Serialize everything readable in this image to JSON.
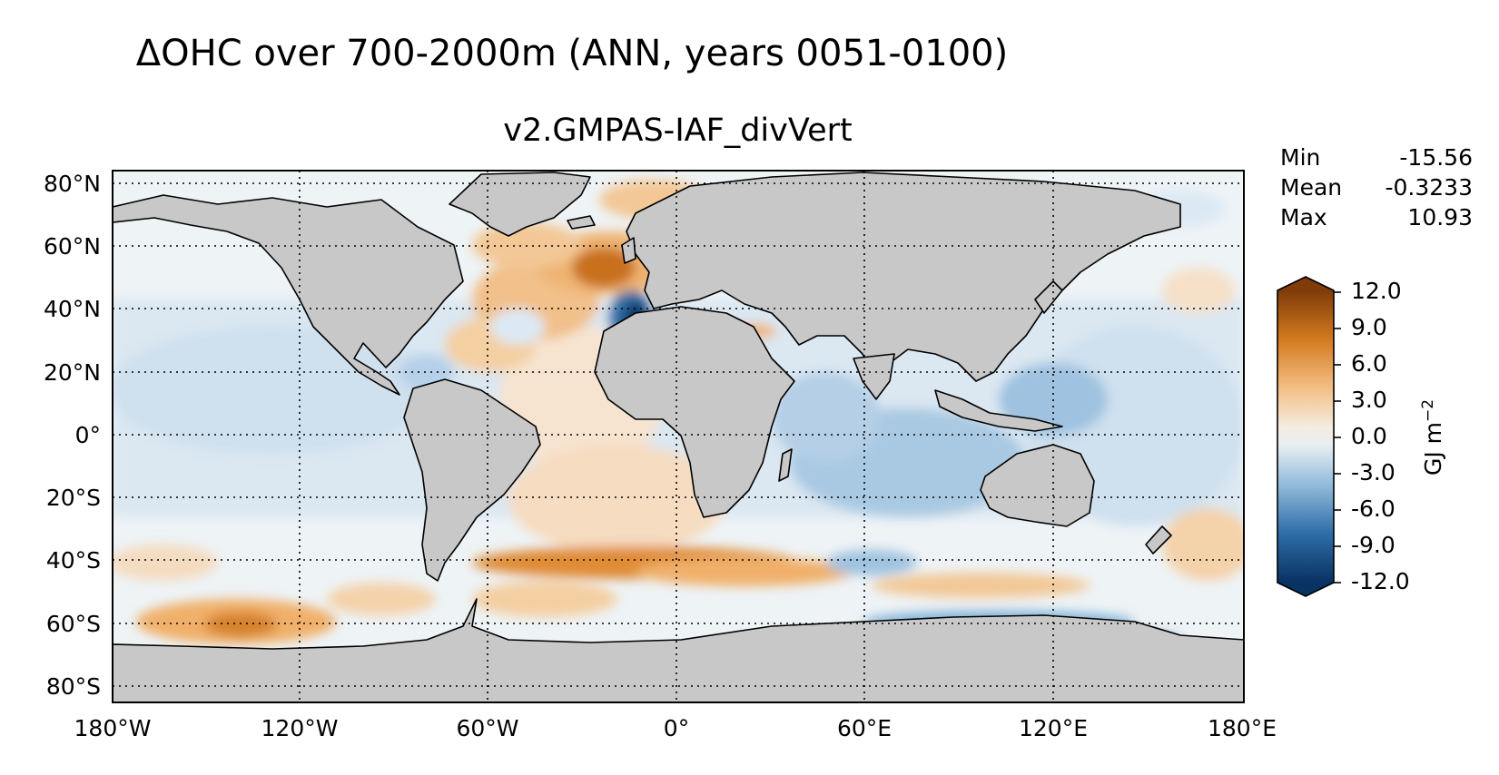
{
  "figure": {
    "title": "ΔOHC over 700-2000m (ANN, years 0051-0100)",
    "subtitle": "v2.GMPAS-IAF_divVert"
  },
  "stats": [
    {
      "label": "Min",
      "value": "-15.56"
    },
    {
      "label": "Mean",
      "value": "-0.3233"
    },
    {
      "label": "Max",
      "value": "10.93"
    }
  ],
  "map": {
    "type": "contour map",
    "projection": "PlateCarree",
    "lon_range": [
      -180,
      180
    ],
    "lat_range": [
      -85,
      85
    ],
    "land_color": "#c8c8c8",
    "gridlines": "dotted",
    "lon_ticks": [
      "180°W",
      "120°W",
      "60°W",
      "0°",
      "60°E",
      "120°E",
      "180°E"
    ],
    "lat_ticks": [
      "80°N",
      "60°N",
      "40°N",
      "20°N",
      "0°",
      "20°S",
      "40°S",
      "60°S",
      "80°S"
    ],
    "features": [
      {
        "region": "subpolar North Atlantic",
        "sign": "positive",
        "approx_value": 9
      },
      {
        "region": "off Iberia / Gulf of Cadiz",
        "sign": "negative",
        "approx_value": -12
      },
      {
        "region": "South Atlantic ~40°S band",
        "sign": "positive",
        "approx_value": 6
      },
      {
        "region": "South Pacific ~60°S",
        "sign": "positive",
        "approx_value": 6
      },
      {
        "region": "Southern Ocean south of Australia",
        "sign": "negative",
        "approx_value": -4
      },
      {
        "region": "Indian Ocean",
        "sign": "negative",
        "approx_value": -3
      }
    ]
  },
  "colorbar": {
    "colormap": "diverging blue-white-orange-brown",
    "range": [
      -12.0,
      12.0
    ],
    "extend": "both",
    "ticks": [
      "12.0",
      "9.0",
      "6.0",
      "3.0",
      "0.0",
      "-3.0",
      "-6.0",
      "-9.0",
      "-12.0"
    ],
    "label": "GJ m",
    "label_exponent": "−2",
    "colors": {
      "max": "#7f3b08",
      "high": "#c2680f",
      "mid_high": "#f0b06a",
      "neutral": "#f2f2f0",
      "mid_low": "#a7c8e0",
      "low": "#3f7fb6",
      "min": "#083262"
    }
  }
}
